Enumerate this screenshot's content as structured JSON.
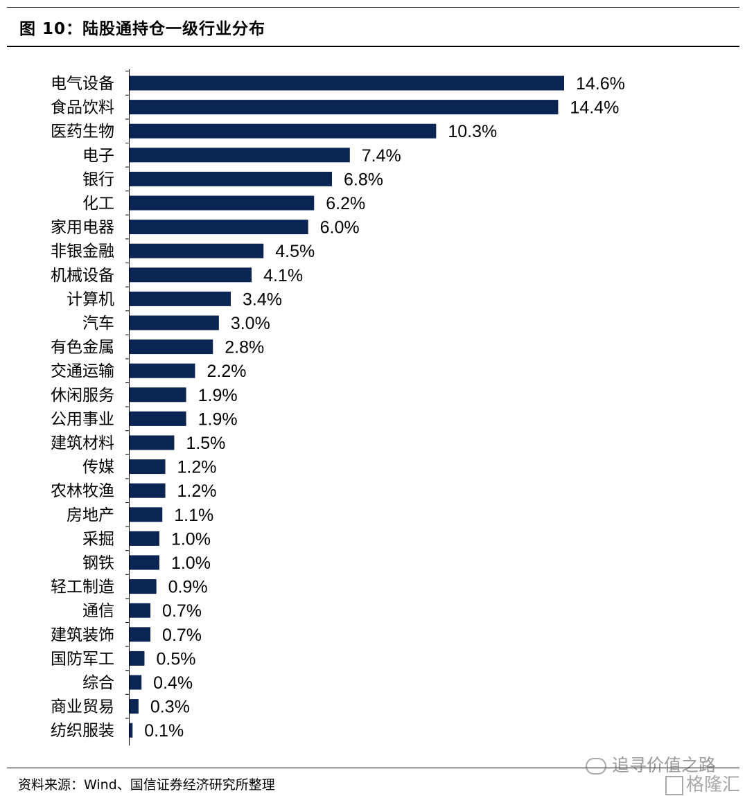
{
  "header": {
    "title": "图 10：陆股通持仓一级行业分布"
  },
  "footer": {
    "source": "资料来源：Wind、国信证券经济研究所整理"
  },
  "watermark": {
    "text1": "追寻价值之路",
    "text2": "格隆汇"
  },
  "colors": {
    "bar": "#0a2553"
  },
  "chart_data": {
    "type": "bar",
    "orientation": "horizontal",
    "title": "",
    "xlabel": "",
    "ylabel": "",
    "unit": "%",
    "categories": [
      "电气设备",
      "食品饮料",
      "医药生物",
      "电子",
      "银行",
      "化工",
      "家用电器",
      "非银金融",
      "机械设备",
      "计算机",
      "汽车",
      "有色金属",
      "交通运输",
      "休闲服务",
      "公用事业",
      "建筑材料",
      "传媒",
      "农林牧渔",
      "房地产",
      "采掘",
      "钢铁",
      "轻工制造",
      "通信",
      "建筑装饰",
      "国防军工",
      "综合",
      "商业贸易",
      "纺织服装"
    ],
    "values": [
      14.6,
      14.4,
      10.3,
      7.4,
      6.8,
      6.2,
      6.0,
      4.5,
      4.1,
      3.4,
      3.0,
      2.8,
      2.2,
      1.9,
      1.9,
      1.5,
      1.2,
      1.2,
      1.1,
      1.0,
      1.0,
      0.9,
      0.7,
      0.7,
      0.5,
      0.4,
      0.3,
      0.1
    ],
    "value_labels": [
      "14.6%",
      "14.4%",
      "10.3%",
      "7.4%",
      "6.8%",
      "6.2%",
      "6.0%",
      "4.5%",
      "4.1%",
      "3.4%",
      "3.0%",
      "2.8%",
      "2.2%",
      "1.9%",
      "1.9%",
      "1.5%",
      "1.2%",
      "1.2%",
      "1.1%",
      "1.0%",
      "1.0%",
      "0.9%",
      "0.7%",
      "0.7%",
      "0.5%",
      "0.4%",
      "0.3%",
      "0.1%"
    ],
    "grid": false,
    "legend": "none"
  }
}
